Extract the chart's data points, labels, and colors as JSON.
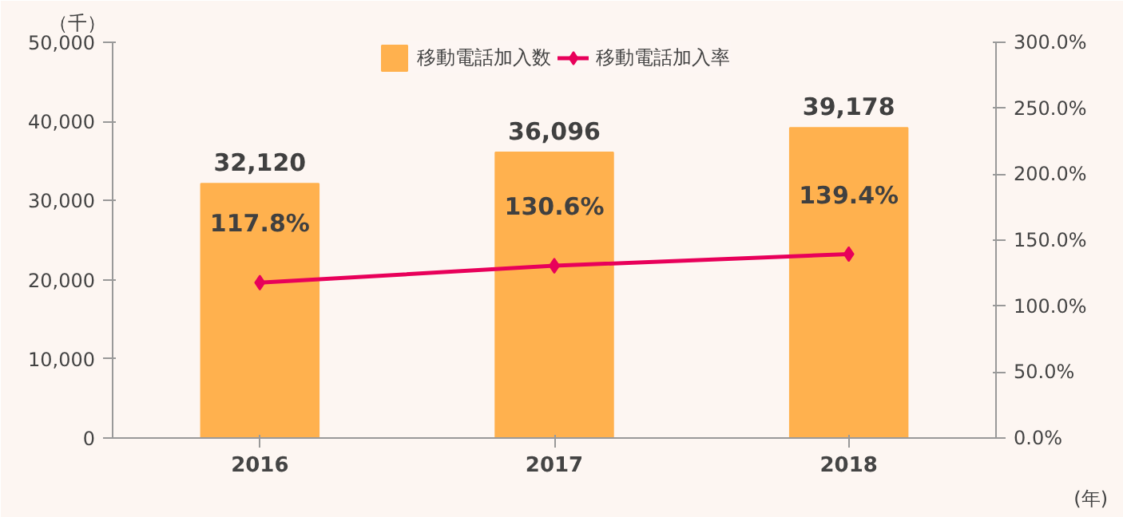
{
  "chart_data": {
    "type": "bar",
    "categories": [
      "2016",
      "2017",
      "2018"
    ],
    "ylabel": "（千）",
    "xlabel": "(年)",
    "ylim": [
      0,
      50000
    ],
    "yticks": [
      0,
      {
        "value": 10000,
        "label": "10,000"
      },
      {
        "value": 20000,
        "label": "20,000"
      },
      {
        "value": 30000,
        "label": "30,000"
      },
      {
        "value": 40000,
        "label": "40,000"
      },
      {
        "value": 50000,
        "label": "50,000"
      }
    ],
    "y2lim": [
      0,
      300
    ],
    "y2ticks": [
      {
        "value": 0,
        "label": "0.0%"
      },
      {
        "value": 50,
        "label": "50.0%"
      },
      {
        "value": 100,
        "label": "100.0%"
      },
      {
        "value": 150,
        "label": "150.0%"
      },
      {
        "value": 200,
        "label": "200.0%"
      },
      {
        "value": 250,
        "label": "250.0%"
      },
      {
        "value": 300,
        "label": "300.0%"
      }
    ],
    "series": [
      {
        "name": "移動電話加入数",
        "color": "#ffb14e",
        "values": [
          32120,
          36096,
          39178
        ],
        "value_labels": [
          "32,120",
          "36,096",
          "39,178"
        ]
      },
      {
        "name": "移動電話加入率",
        "type": "line",
        "axis": "y2",
        "color": "#e8005a",
        "marker": "diamond",
        "values": [
          117.8,
          130.6,
          139.4
        ],
        "value_labels": [
          "117.8%",
          "130.6%",
          "139.4%"
        ]
      }
    ],
    "legend": "top",
    "grid": false
  }
}
